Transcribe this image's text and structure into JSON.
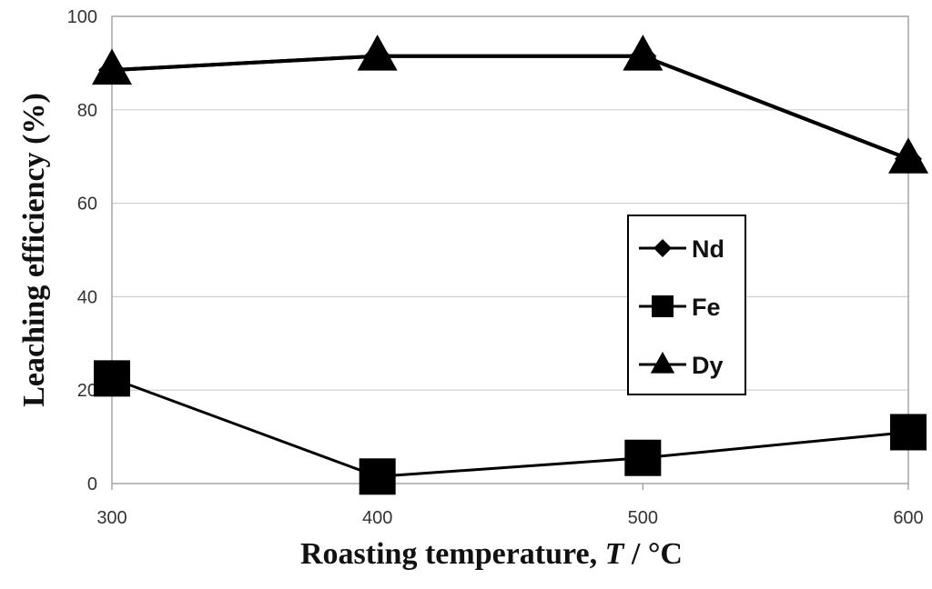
{
  "chart_data": {
    "type": "line",
    "xlabel": "Roasting temperature, ",
    "xlabel_var": "T",
    "xlabel_unit": " / °C",
    "ylabel": "Leaching efficiency (%)",
    "x": [
      300,
      400,
      500,
      600
    ],
    "xticks": [
      "300",
      "400",
      "500",
      "600"
    ],
    "ylim": [
      0,
      100
    ],
    "yticks": [
      "0",
      "20",
      "40",
      "60",
      "80",
      "100"
    ],
    "grid": "horizontal",
    "legend_position": "center-right",
    "colors": {
      "line": "#000000",
      "grid": "#cfcfcf",
      "frame": "#a6a6a6"
    },
    "series": [
      {
        "name": "Nd",
        "marker": "diamond",
        "values": [
          88.5,
          91.5,
          91.5,
          69.5
        ]
      },
      {
        "name": "Fe",
        "marker": "square",
        "values": [
          22.5,
          1.5,
          5.5,
          11.0
        ]
      },
      {
        "name": "Dy",
        "marker": "triangle",
        "values": [
          88.5,
          91.5,
          91.5,
          69.5
        ]
      }
    ]
  }
}
